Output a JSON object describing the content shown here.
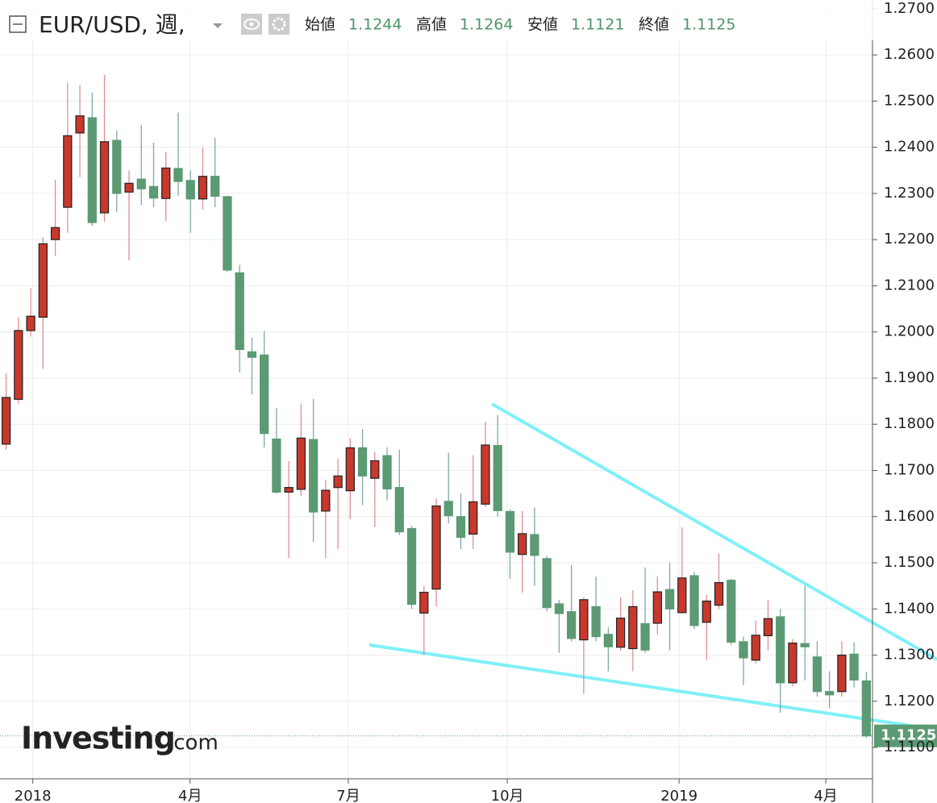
{
  "chart_data": {
    "type": "candlestick",
    "title": "EUR/USD, 週,",
    "ohlc_labels": [
      "始値",
      "高値",
      "安値",
      "終値"
    ],
    "logo": {
      "name": "Investing",
      "suffix": ".com"
    },
    "categories": [
      null,
      null,
      null,
      null,
      null,
      null,
      null,
      null,
      null,
      null,
      null,
      null,
      null,
      null,
      null,
      null,
      null,
      null,
      null,
      null,
      null,
      null,
      null,
      null,
      null,
      null,
      null,
      null,
      null,
      null,
      null,
      null,
      null,
      null,
      null,
      null,
      null,
      null,
      null,
      null,
      null,
      null,
      null,
      null,
      null,
      null,
      null,
      null,
      null,
      null,
      null,
      null,
      null,
      null,
      null,
      null,
      null,
      null,
      null,
      null,
      null,
      null,
      null,
      null,
      null,
      null,
      null,
      null,
      null,
      null,
      null
    ],
    "open": [
      1.1757,
      1.1854,
      1.2003,
      1.2032,
      1.22,
      1.227,
      1.2431,
      1.2464,
      1.2258,
      1.2415,
      1.2303,
      1.2331,
      1.2315,
      1.2289,
      1.2354,
      1.2328,
      1.2288,
      1.2337,
      1.2293,
      1.2128,
      1.1957,
      1.195,
      1.1768,
      1.1653,
      1.1659,
      1.1767,
      1.1612,
      1.1663,
      1.1656,
      1.1749,
      1.1683,
      1.1732,
      1.1663,
      1.1574,
      1.1391,
      1.1443,
      1.1633,
      1.16,
      1.1562,
      1.1627,
      1.1754,
      1.1611,
      1.1518,
      1.1561,
      1.1509,
      1.1411,
      1.1394,
      1.1333,
      1.1405,
      1.1345,
      1.1317,
      1.1314,
      1.1368,
      1.1369,
      1.1442,
      1.1392,
      1.1472,
      1.1371,
      1.1408,
      1.1462,
      1.1329,
      1.1289,
      1.1342,
      1.1383,
      1.124,
      1.1325,
      1.1296,
      1.1221,
      1.1221,
      1.1302,
      1.1244
    ],
    "high": [
      1.191,
      1.2032,
      1.2095,
      1.2205,
      1.233,
      1.254,
      1.2535,
      1.2518,
      1.2557,
      1.2437,
      1.235,
      1.2448,
      1.241,
      1.239,
      1.2475,
      1.235,
      1.24,
      1.242,
      1.2295,
      1.2145,
      1.1988,
      1.2002,
      1.1835,
      1.172,
      1.1845,
      1.1855,
      1.168,
      1.1725,
      1.177,
      1.179,
      1.174,
      1.175,
      1.1745,
      1.158,
      1.145,
      1.164,
      1.1738,
      1.165,
      1.1733,
      1.1805,
      1.182,
      1.1615,
      1.1612,
      1.162,
      1.1515,
      1.142,
      1.1495,
      1.1425,
      1.147,
      1.136,
      1.1425,
      1.144,
      1.149,
      1.147,
      1.15,
      1.1577,
      1.148,
      1.143,
      1.152,
      1.1465,
      1.134,
      1.1375,
      1.142,
      1.14,
      1.1335,
      1.145,
      1.133,
      1.1265,
      1.133,
      1.1328,
      1.1264
    ],
    "low": [
      1.1744,
      1.1845,
      1.199,
      1.192,
      1.2165,
      1.2215,
      1.2335,
      1.223,
      1.2238,
      1.226,
      1.2155,
      1.2275,
      1.227,
      1.224,
      1.2295,
      1.2215,
      1.2265,
      1.227,
      1.213,
      1.1912,
      1.1865,
      1.175,
      1.165,
      1.151,
      1.1645,
      1.1545,
      1.151,
      1.153,
      1.1595,
      1.1625,
      1.1577,
      1.1635,
      1.156,
      1.14,
      1.13,
      1.1405,
      1.1585,
      1.153,
      1.153,
      1.162,
      1.16,
      1.1465,
      1.1435,
      1.145,
      1.1395,
      1.1305,
      1.133,
      1.1215,
      1.133,
      1.1265,
      1.131,
      1.1265,
      1.1305,
      1.1345,
      1.131,
      1.139,
      1.1357,
      1.129,
      1.14,
      1.1322,
      1.1235,
      1.1282,
      1.131,
      1.1175,
      1.1232,
      1.1245,
      1.121,
      1.1185,
      1.121,
      1.123,
      1.1121
    ],
    "close": [
      1.1858,
      1.2003,
      1.2034,
      1.2191,
      1.2226,
      1.2425,
      1.2468,
      1.2237,
      1.2412,
      1.23,
      1.2322,
      1.231,
      1.229,
      1.2355,
      1.2326,
      1.2288,
      1.2337,
      1.2294,
      1.2134,
      1.1962,
      1.1945,
      1.178,
      1.1653,
      1.1663,
      1.177,
      1.161,
      1.1657,
      1.1688,
      1.1749,
      1.1688,
      1.1721,
      1.166,
      1.1567,
      1.141,
      1.1436,
      1.1623,
      1.1602,
      1.1555,
      1.1632,
      1.1755,
      1.1613,
      1.1523,
      1.1563,
      1.1516,
      1.1403,
      1.139,
      1.1336,
      1.142,
      1.134,
      1.1318,
      1.138,
      1.1405,
      1.1311,
      1.1437,
      1.14,
      1.1467,
      1.1364,
      1.1417,
      1.1457,
      1.1328,
      1.1294,
      1.1343,
      1.1379,
      1.124,
      1.1326,
      1.1318,
      1.1221,
      1.1214,
      1.13,
      1.1246,
      1.1125
    ],
    "up_color": "#c8382c",
    "down_color": "#5b9a73",
    "value_color": "#4f9468",
    "ylim": [
      1.1032,
      1.2719
    ],
    "yticks": [
      {
        "value": 1.11,
        "label": "1.1100"
      },
      {
        "value": 1.12,
        "label": "1.1200"
      },
      {
        "value": 1.13,
        "label": "1.1300"
      },
      {
        "value": 1.14,
        "label": "1.1400"
      },
      {
        "value": 1.15,
        "label": "1.1500"
      },
      {
        "value": 1.16,
        "label": "1.1600"
      },
      {
        "value": 1.17,
        "label": "1.1700"
      },
      {
        "value": 1.18,
        "label": "1.1800"
      },
      {
        "value": 1.19,
        "label": "1.1900"
      },
      {
        "value": 1.2,
        "label": "1.2000"
      },
      {
        "value": 1.21,
        "label": "1.2100"
      },
      {
        "value": 1.22,
        "label": "1.2200"
      },
      {
        "value": 1.23,
        "label": "1.2300"
      },
      {
        "value": 1.24,
        "label": "1.2400"
      },
      {
        "value": 1.25,
        "label": "1.2500"
      },
      {
        "value": 1.26,
        "label": "1.2600"
      },
      {
        "value": 1.27,
        "label": "1.2700"
      }
    ],
    "xticks": [
      {
        "value": 2.17,
        "label": "2018"
      },
      {
        "value": 14.97,
        "label": "4月"
      },
      {
        "value": 27.84,
        "label": "7月"
      },
      {
        "value": 40.78,
        "label": "10月"
      },
      {
        "value": 54.76,
        "label": "2019"
      },
      {
        "value": 66.7,
        "label": "4月"
      }
    ],
    "grid": true
  }
}
